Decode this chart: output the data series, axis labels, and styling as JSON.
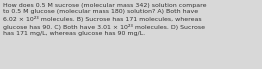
{
  "text": "How does 0.5 M sucrose (molecular mass 342) solution compare\nto 0.5 M glucose (molecular mass 180) solution? A) Both have\n6.02 × 10²³ molecules. B) Sucrose has 171 molecules, whereas\nglucose has 90. C) Both have 3.01 × 10²³ molecules. D) Sucrose\nhas 171 mg/L, whereas glucose has 90 mg/L.",
  "background_color": "#d8d8d8",
  "text_color": "#333333",
  "font_size": 4.5,
  "figsize": [
    2.62,
    0.69
  ],
  "dpi": 100
}
